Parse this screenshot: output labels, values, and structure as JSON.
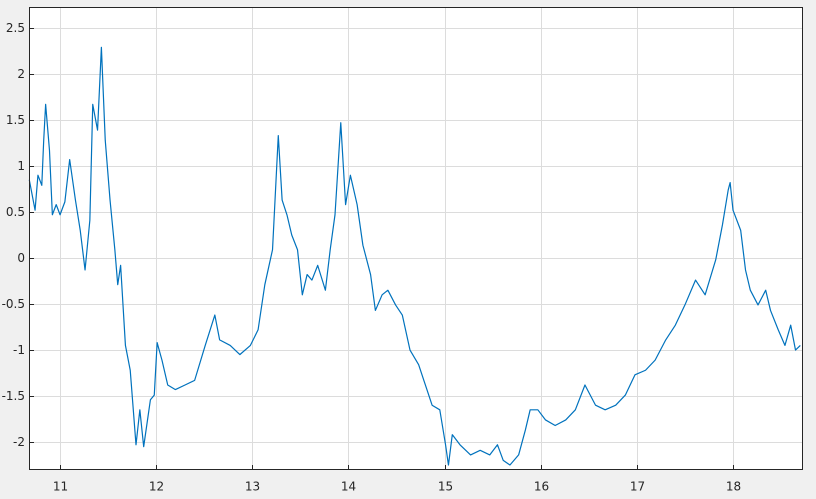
{
  "chart_data": {
    "type": "line",
    "color": "#0072bd",
    "grid": true,
    "x": [
      10.68,
      10.74,
      10.77,
      10.81,
      10.83,
      10.85,
      10.89,
      10.92,
      10.96,
      11.0,
      11.05,
      11.1,
      11.16,
      11.21,
      11.26,
      11.31,
      11.34,
      11.39,
      11.43,
      11.47,
      11.52,
      11.57,
      11.6,
      11.63,
      11.68,
      11.73,
      11.79,
      11.83,
      11.87,
      11.94,
      11.98,
      12.01,
      12.06,
      12.12,
      12.2,
      12.3,
      12.4,
      12.51,
      12.61,
      12.66,
      12.77,
      12.87,
      12.98,
      13.06,
      13.13,
      13.21,
      13.27,
      13.31,
      13.36,
      13.41,
      13.47,
      13.52,
      13.57,
      13.62,
      13.68,
      13.76,
      13.81,
      13.86,
      13.92,
      13.97,
      14.02,
      14.09,
      14.15,
      14.23,
      14.28,
      14.35,
      14.41,
      14.49,
      14.56,
      14.64,
      14.73,
      14.8,
      14.87,
      14.95,
      15.01,
      15.04,
      15.08,
      15.16,
      15.27,
      15.37,
      15.47,
      15.55,
      15.61,
      15.68,
      15.77,
      15.84,
      15.89,
      15.97,
      16.05,
      16.15,
      16.26,
      16.36,
      16.46,
      16.57,
      16.67,
      16.78,
      16.88,
      16.98,
      17.09,
      17.19,
      17.3,
      17.4,
      17.5,
      17.61,
      17.71,
      17.82,
      17.89,
      17.95,
      17.97,
      18.0,
      18.08,
      18.13,
      18.18,
      18.26,
      18.34,
      18.39,
      18.47,
      18.54,
      18.6,
      18.65,
      18.7
    ],
    "values": [
      0.85,
      0.52,
      0.9,
      0.79,
      1.28,
      1.67,
      1.17,
      0.47,
      0.58,
      0.47,
      0.61,
      1.07,
      0.63,
      0.3,
      -0.13,
      0.41,
      1.67,
      1.39,
      2.29,
      1.28,
      0.63,
      0.09,
      -0.29,
      -0.08,
      -0.95,
      -1.22,
      -2.03,
      -1.65,
      -2.05,
      -1.54,
      -1.49,
      -0.92,
      -1.11,
      -1.38,
      -1.43,
      -1.38,
      -1.33,
      -0.95,
      -0.62,
      -0.89,
      -0.95,
      -1.05,
      -0.95,
      -0.78,
      -0.29,
      0.09,
      1.33,
      0.63,
      0.47,
      0.25,
      0.09,
      -0.4,
      -0.18,
      -0.24,
      -0.08,
      -0.35,
      0.09,
      0.47,
      1.47,
      0.58,
      0.9,
      0.58,
      0.14,
      -0.18,
      -0.57,
      -0.4,
      -0.35,
      -0.51,
      -0.62,
      -1.0,
      -1.16,
      -1.38,
      -1.6,
      -1.65,
      -2.03,
      -2.25,
      -1.92,
      -2.03,
      -2.14,
      -2.09,
      -2.14,
      -2.03,
      -2.2,
      -2.25,
      -2.14,
      -1.87,
      -1.65,
      -1.65,
      -1.76,
      -1.82,
      -1.76,
      -1.65,
      -1.38,
      -1.6,
      -1.65,
      -1.6,
      -1.49,
      -1.27,
      -1.22,
      -1.11,
      -0.89,
      -0.73,
      -0.51,
      -0.24,
      -0.4,
      -0.02,
      0.36,
      0.74,
      0.82,
      0.52,
      0.3,
      -0.13,
      -0.35,
      -0.51,
      -0.35,
      -0.57,
      -0.78,
      -0.95,
      -0.73,
      -1.0,
      -0.95
    ],
    "xlim": [
      10.677,
      18.728
    ],
    "xticks": [
      11,
      12,
      13,
      14,
      15,
      16,
      17,
      18
    ],
    "ylim": [
      -2.304,
      2.728
    ],
    "yticks": [
      2.5,
      2,
      1.5,
      1,
      0.5,
      0,
      -0.5,
      -1,
      -1.5,
      -2
    ]
  }
}
